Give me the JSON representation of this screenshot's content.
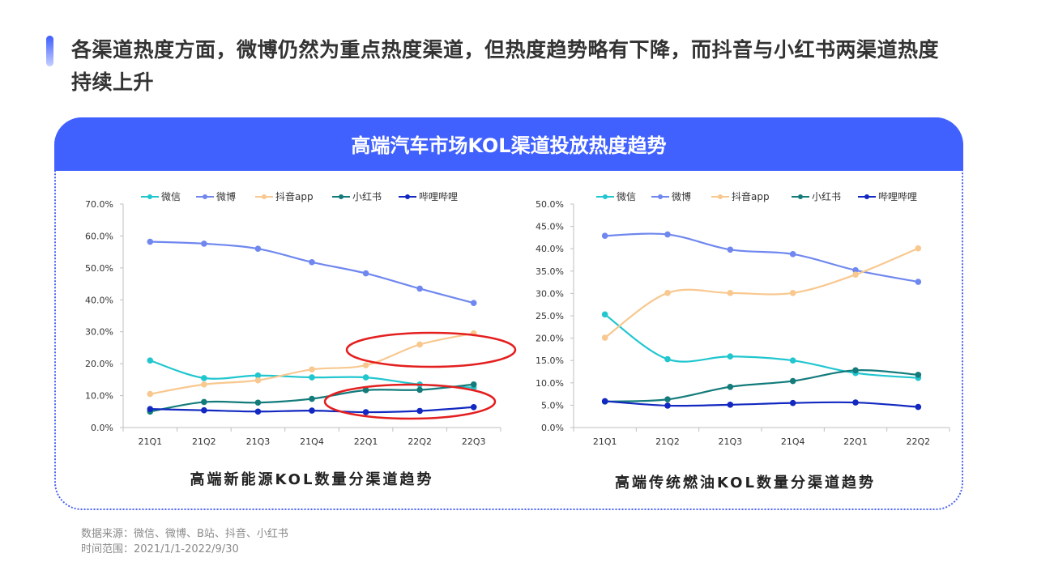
{
  "header": {
    "title": "各渠道热度方面，微博仍然为重点热度渠道，但热度趋势略有下降，而抖音与小红书两渠道热度持续上升"
  },
  "panel": {
    "banner_title": "高端汽车市场KOL渠道投放热度趋势"
  },
  "colors": {
    "accent": "#4161ff",
    "highlight_ellipse": "#e41f1f"
  },
  "footer": {
    "source": "数据来源：微信、微博、B站、抖音、小红书",
    "range": "时间范围：2021/1/1-2022/9/30"
  },
  "chart_data": [
    {
      "type": "line",
      "title": "高端新能源KOL数量分渠道趋势",
      "categories": [
        "21Q1",
        "21Q2",
        "21Q3",
        "21Q4",
        "22Q1",
        "22Q2",
        "22Q3"
      ],
      "y_ticks": [
        "0.0%",
        "10.0%",
        "20.0%",
        "30.0%",
        "40.0%",
        "50.0%",
        "60.0%",
        "70.0%"
      ],
      "ylim": [
        0,
        70
      ],
      "legend_position": "top",
      "series": [
        {
          "name": "微信",
          "color": "#21c6cf",
          "values": [
            21.0,
            15.5,
            16.3,
            15.7,
            15.7,
            13.5,
            12.5
          ]
        },
        {
          "name": "微博",
          "color": "#6f87ef",
          "values": [
            58.2,
            57.6,
            56.0,
            51.8,
            48.3,
            43.5,
            39.0
          ]
        },
        {
          "name": "抖音app",
          "color": "#f8c88f",
          "values": [
            10.5,
            13.5,
            14.8,
            18.2,
            19.5,
            26.0,
            29.5
          ]
        },
        {
          "name": "小红书",
          "color": "#147b7b",
          "values": [
            5.0,
            8.0,
            7.8,
            9.0,
            11.7,
            11.8,
            13.5
          ]
        },
        {
          "name": "哔哩哔哩",
          "color": "#1228c0",
          "values": [
            5.8,
            5.4,
            5.0,
            5.3,
            4.8,
            5.2,
            6.4
          ]
        }
      ]
    },
    {
      "type": "line",
      "title": "高端传统燃油KOL数量分渠道趋势",
      "categories": [
        "21Q1",
        "21Q2",
        "21Q3",
        "21Q4",
        "22Q1",
        "22Q2"
      ],
      "y_ticks": [
        "0.0%",
        "5.0%",
        "10.0%",
        "15.0%",
        "20.0%",
        "25.0%",
        "30.0%",
        "35.0%",
        "40.0%",
        "45.0%",
        "50.0%"
      ],
      "ylim": [
        0,
        50
      ],
      "legend_position": "top",
      "series": [
        {
          "name": "微信",
          "color": "#21c6cf",
          "values": [
            25.3,
            15.3,
            15.9,
            15.0,
            12.2,
            11.1
          ]
        },
        {
          "name": "微博",
          "color": "#6f87ef",
          "values": [
            42.9,
            43.2,
            39.8,
            38.8,
            35.2,
            32.6
          ]
        },
        {
          "name": "抖音app",
          "color": "#f8c88f",
          "values": [
            20.1,
            30.1,
            30.1,
            30.1,
            34.2,
            40.1
          ]
        },
        {
          "name": "小红书",
          "color": "#147b7b",
          "values": [
            5.8,
            6.3,
            9.1,
            10.4,
            12.8,
            11.8
          ]
        },
        {
          "name": "哔哩哔哩",
          "color": "#1228c0",
          "values": [
            5.9,
            4.9,
            5.1,
            5.5,
            5.6,
            4.6
          ]
        }
      ]
    }
  ]
}
